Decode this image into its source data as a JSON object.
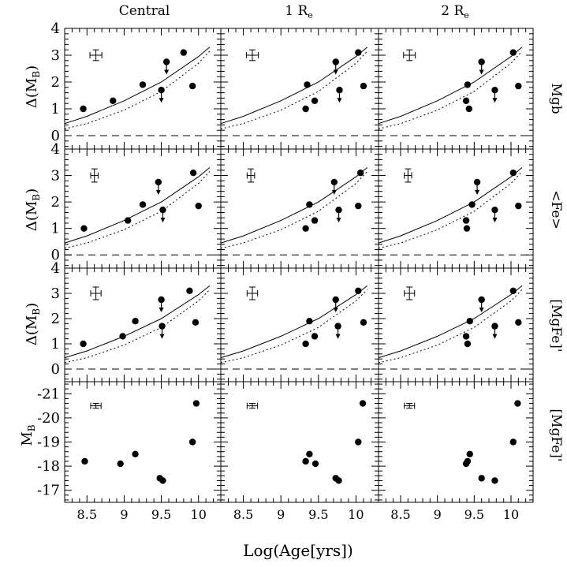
{
  "chart_data": {
    "type": "scatter",
    "x_label": "Log(Age[yrs])",
    "xlim": [
      8.2,
      10.3
    ],
    "x_ticks": [
      "8.5",
      "9",
      "9.5",
      "10"
    ],
    "column_titles": [
      "Central",
      "1 R",
      "2 R"
    ],
    "column_subscripts": [
      "",
      "e",
      "e"
    ],
    "row_labels": [
      "Mgb",
      "<Fe>",
      "[MgFe]'",
      "[MgFe]'"
    ],
    "rows": [
      {
        "y_label": "Δ(M",
        "y_sub": "B",
        "y_close": ")",
        "ylim": [
          -0.5,
          4
        ],
        "y_ticks": [
          "0",
          "1",
          "2",
          "3",
          "4"
        ],
        "dashed_zero": true,
        "model_solid": {
          "x": [
            8.2,
            8.5,
            9.0,
            9.5,
            10.0,
            10.15
          ],
          "y": [
            0.45,
            0.72,
            1.3,
            2.0,
            2.95,
            3.3
          ]
        },
        "model_dotted": {
          "x": [
            8.2,
            8.5,
            9.0,
            9.5,
            10.0,
            10.15
          ],
          "y": [
            0.25,
            0.45,
            0.95,
            1.65,
            2.7,
            3.15
          ]
        },
        "error_bar": {
          "x": 8.62,
          "y": 3.0,
          "dx": 0.08,
          "dy": 0.2
        },
        "panels": [
          {
            "points": [
              {
                "x": 8.45,
                "y": 1.0
              },
              {
                "x": 8.85,
                "y": 1.3
              },
              {
                "x": 9.25,
                "y": 1.9
              },
              {
                "x": 9.5,
                "y": 1.7,
                "upper_limit": true
              },
              {
                "x": 9.57,
                "y": 2.75,
                "upper_limit": true
              },
              {
                "x": 9.8,
                "y": 3.1
              },
              {
                "x": 9.92,
                "y": 1.85
              }
            ]
          },
          {
            "points": [
              {
                "x": 9.33,
                "y": 1.0
              },
              {
                "x": 9.35,
                "y": 1.9
              },
              {
                "x": 9.45,
                "y": 1.3
              },
              {
                "x": 9.73,
                "y": 2.75,
                "upper_limit": true
              },
              {
                "x": 9.78,
                "y": 1.7,
                "upper_limit": true
              },
              {
                "x": 10.03,
                "y": 3.1
              },
              {
                "x": 10.1,
                "y": 1.85
              }
            ]
          },
          {
            "points": [
              {
                "x": 9.39,
                "y": 1.3
              },
              {
                "x": 9.41,
                "y": 1.9
              },
              {
                "x": 9.43,
                "y": 1.0
              },
              {
                "x": 9.6,
                "y": 2.75,
                "upper_limit": true
              },
              {
                "x": 9.78,
                "y": 1.7,
                "upper_limit": true
              },
              {
                "x": 10.03,
                "y": 3.1
              },
              {
                "x": 10.1,
                "y": 1.85
              }
            ]
          }
        ]
      },
      {
        "y_label": "Δ(M",
        "y_sub": "B",
        "y_close": ")",
        "ylim": [
          -0.5,
          4
        ],
        "y_ticks": [
          "0",
          "1",
          "2",
          "3",
          "4"
        ],
        "dashed_zero": true,
        "model_solid": {
          "x": [
            8.2,
            8.5,
            9.0,
            9.5,
            10.0,
            10.15
          ],
          "y": [
            0.45,
            0.72,
            1.3,
            2.0,
            2.95,
            3.3
          ]
        },
        "model_dotted": {
          "x": [
            8.2,
            8.5,
            9.0,
            9.5,
            10.0,
            10.15
          ],
          "y": [
            0.25,
            0.45,
            0.95,
            1.65,
            2.7,
            3.15
          ]
        },
        "error_bar": {
          "x": 8.6,
          "y": 3.0,
          "dx": 0.05,
          "dy": 0.25
        },
        "panels": [
          {
            "points": [
              {
                "x": 8.46,
                "y": 1.0
              },
              {
                "x": 9.05,
                "y": 1.3
              },
              {
                "x": 9.25,
                "y": 1.9
              },
              {
                "x": 9.46,
                "y": 2.75,
                "upper_limit": true
              },
              {
                "x": 9.52,
                "y": 1.7,
                "upper_limit": true
              },
              {
                "x": 9.93,
                "y": 3.1
              },
              {
                "x": 10.0,
                "y": 1.85
              }
            ]
          },
          {
            "points": [
              {
                "x": 9.33,
                "y": 1.0
              },
              {
                "x": 9.38,
                "y": 1.9
              },
              {
                "x": 9.45,
                "y": 1.3
              },
              {
                "x": 9.71,
                "y": 2.75,
                "upper_limit": true
              },
              {
                "x": 9.77,
                "y": 1.7,
                "upper_limit": true
              },
              {
                "x": 10.06,
                "y": 3.1
              },
              {
                "x": 10.03,
                "y": 1.85
              }
            ]
          },
          {
            "points": [
              {
                "x": 9.39,
                "y": 1.3
              },
              {
                "x": 9.4,
                "y": 1.0
              },
              {
                "x": 9.47,
                "y": 1.9
              },
              {
                "x": 9.54,
                "y": 2.75,
                "upper_limit": true
              },
              {
                "x": 9.78,
                "y": 1.7,
                "upper_limit": true
              },
              {
                "x": 10.03,
                "y": 3.1
              },
              {
                "x": 10.1,
                "y": 1.85
              }
            ]
          }
        ]
      },
      {
        "y_label": "Δ(M",
        "y_sub": "B",
        "y_close": ")",
        "ylim": [
          -0.5,
          4
        ],
        "y_ticks": [
          "0",
          "1",
          "2",
          "3",
          "4"
        ],
        "dashed_zero": true,
        "model_solid": {
          "x": [
            8.2,
            8.5,
            9.0,
            9.5,
            10.0,
            10.15
          ],
          "y": [
            0.45,
            0.72,
            1.3,
            2.0,
            2.95,
            3.3
          ]
        },
        "model_dotted": {
          "x": [
            8.2,
            8.5,
            9.0,
            9.5,
            10.0,
            10.15
          ],
          "y": [
            0.25,
            0.45,
            0.95,
            1.65,
            2.7,
            3.15
          ]
        },
        "error_bar": {
          "x": 8.62,
          "y": 3.0,
          "dx": 0.07,
          "dy": 0.25
        },
        "panels": [
          {
            "points": [
              {
                "x": 8.45,
                "y": 1.0
              },
              {
                "x": 8.98,
                "y": 1.3
              },
              {
                "x": 9.15,
                "y": 1.9
              },
              {
                "x": 9.5,
                "y": 2.75,
                "upper_limit": true
              },
              {
                "x": 9.51,
                "y": 1.7,
                "upper_limit": true
              },
              {
                "x": 9.88,
                "y": 3.1
              },
              {
                "x": 9.96,
                "y": 1.85
              }
            ]
          },
          {
            "points": [
              {
                "x": 9.33,
                "y": 1.0
              },
              {
                "x": 9.38,
                "y": 1.9
              },
              {
                "x": 9.45,
                "y": 1.3
              },
              {
                "x": 9.73,
                "y": 2.75,
                "upper_limit": true
              },
              {
                "x": 9.76,
                "y": 1.7,
                "upper_limit": true
              },
              {
                "x": 10.03,
                "y": 3.1
              },
              {
                "x": 10.1,
                "y": 1.85
              }
            ]
          },
          {
            "points": [
              {
                "x": 9.39,
                "y": 1.3
              },
              {
                "x": 9.41,
                "y": 1.0
              },
              {
                "x": 9.44,
                "y": 1.9
              },
              {
                "x": 9.6,
                "y": 2.75,
                "upper_limit": true
              },
              {
                "x": 9.78,
                "y": 1.7,
                "upper_limit": true
              },
              {
                "x": 10.03,
                "y": 3.1
              },
              {
                "x": 10.1,
                "y": 1.85
              }
            ]
          }
        ]
      },
      {
        "y_label": "M",
        "y_sub": "B",
        "y_close": "",
        "ylim": [
          -16.5,
          -21.5
        ],
        "y_ticks": [
          "-17",
          "-18",
          "-19",
          "-20",
          "-21"
        ],
        "dashed_zero": false,
        "error_bar": {
          "x": 8.62,
          "y": -20.5,
          "dx": 0.07,
          "dy": 0.1
        },
        "panels": [
          {
            "points": [
              {
                "x": 8.47,
                "y": -18.2
              },
              {
                "x": 8.95,
                "y": -18.1
              },
              {
                "x": 9.15,
                "y": -18.5
              },
              {
                "x": 9.48,
                "y": -17.5
              },
              {
                "x": 9.52,
                "y": -17.4
              },
              {
                "x": 9.92,
                "y": -19.0
              },
              {
                "x": 9.97,
                "y": -20.6
              }
            ]
          },
          {
            "points": [
              {
                "x": 9.33,
                "y": -18.2
              },
              {
                "x": 9.38,
                "y": -18.5
              },
              {
                "x": 9.46,
                "y": -18.1
              },
              {
                "x": 9.73,
                "y": -17.5
              },
              {
                "x": 9.77,
                "y": -17.4
              },
              {
                "x": 10.03,
                "y": -19.0
              },
              {
                "x": 10.09,
                "y": -20.6
              }
            ]
          },
          {
            "points": [
              {
                "x": 9.39,
                "y": -18.1
              },
              {
                "x": 9.41,
                "y": -18.2
              },
              {
                "x": 9.44,
                "y": -18.5
              },
              {
                "x": 9.6,
                "y": -17.5
              },
              {
                "x": 9.78,
                "y": -17.4
              },
              {
                "x": 10.03,
                "y": -19.0
              },
              {
                "x": 10.09,
                "y": -20.6
              }
            ]
          }
        ]
      }
    ]
  }
}
